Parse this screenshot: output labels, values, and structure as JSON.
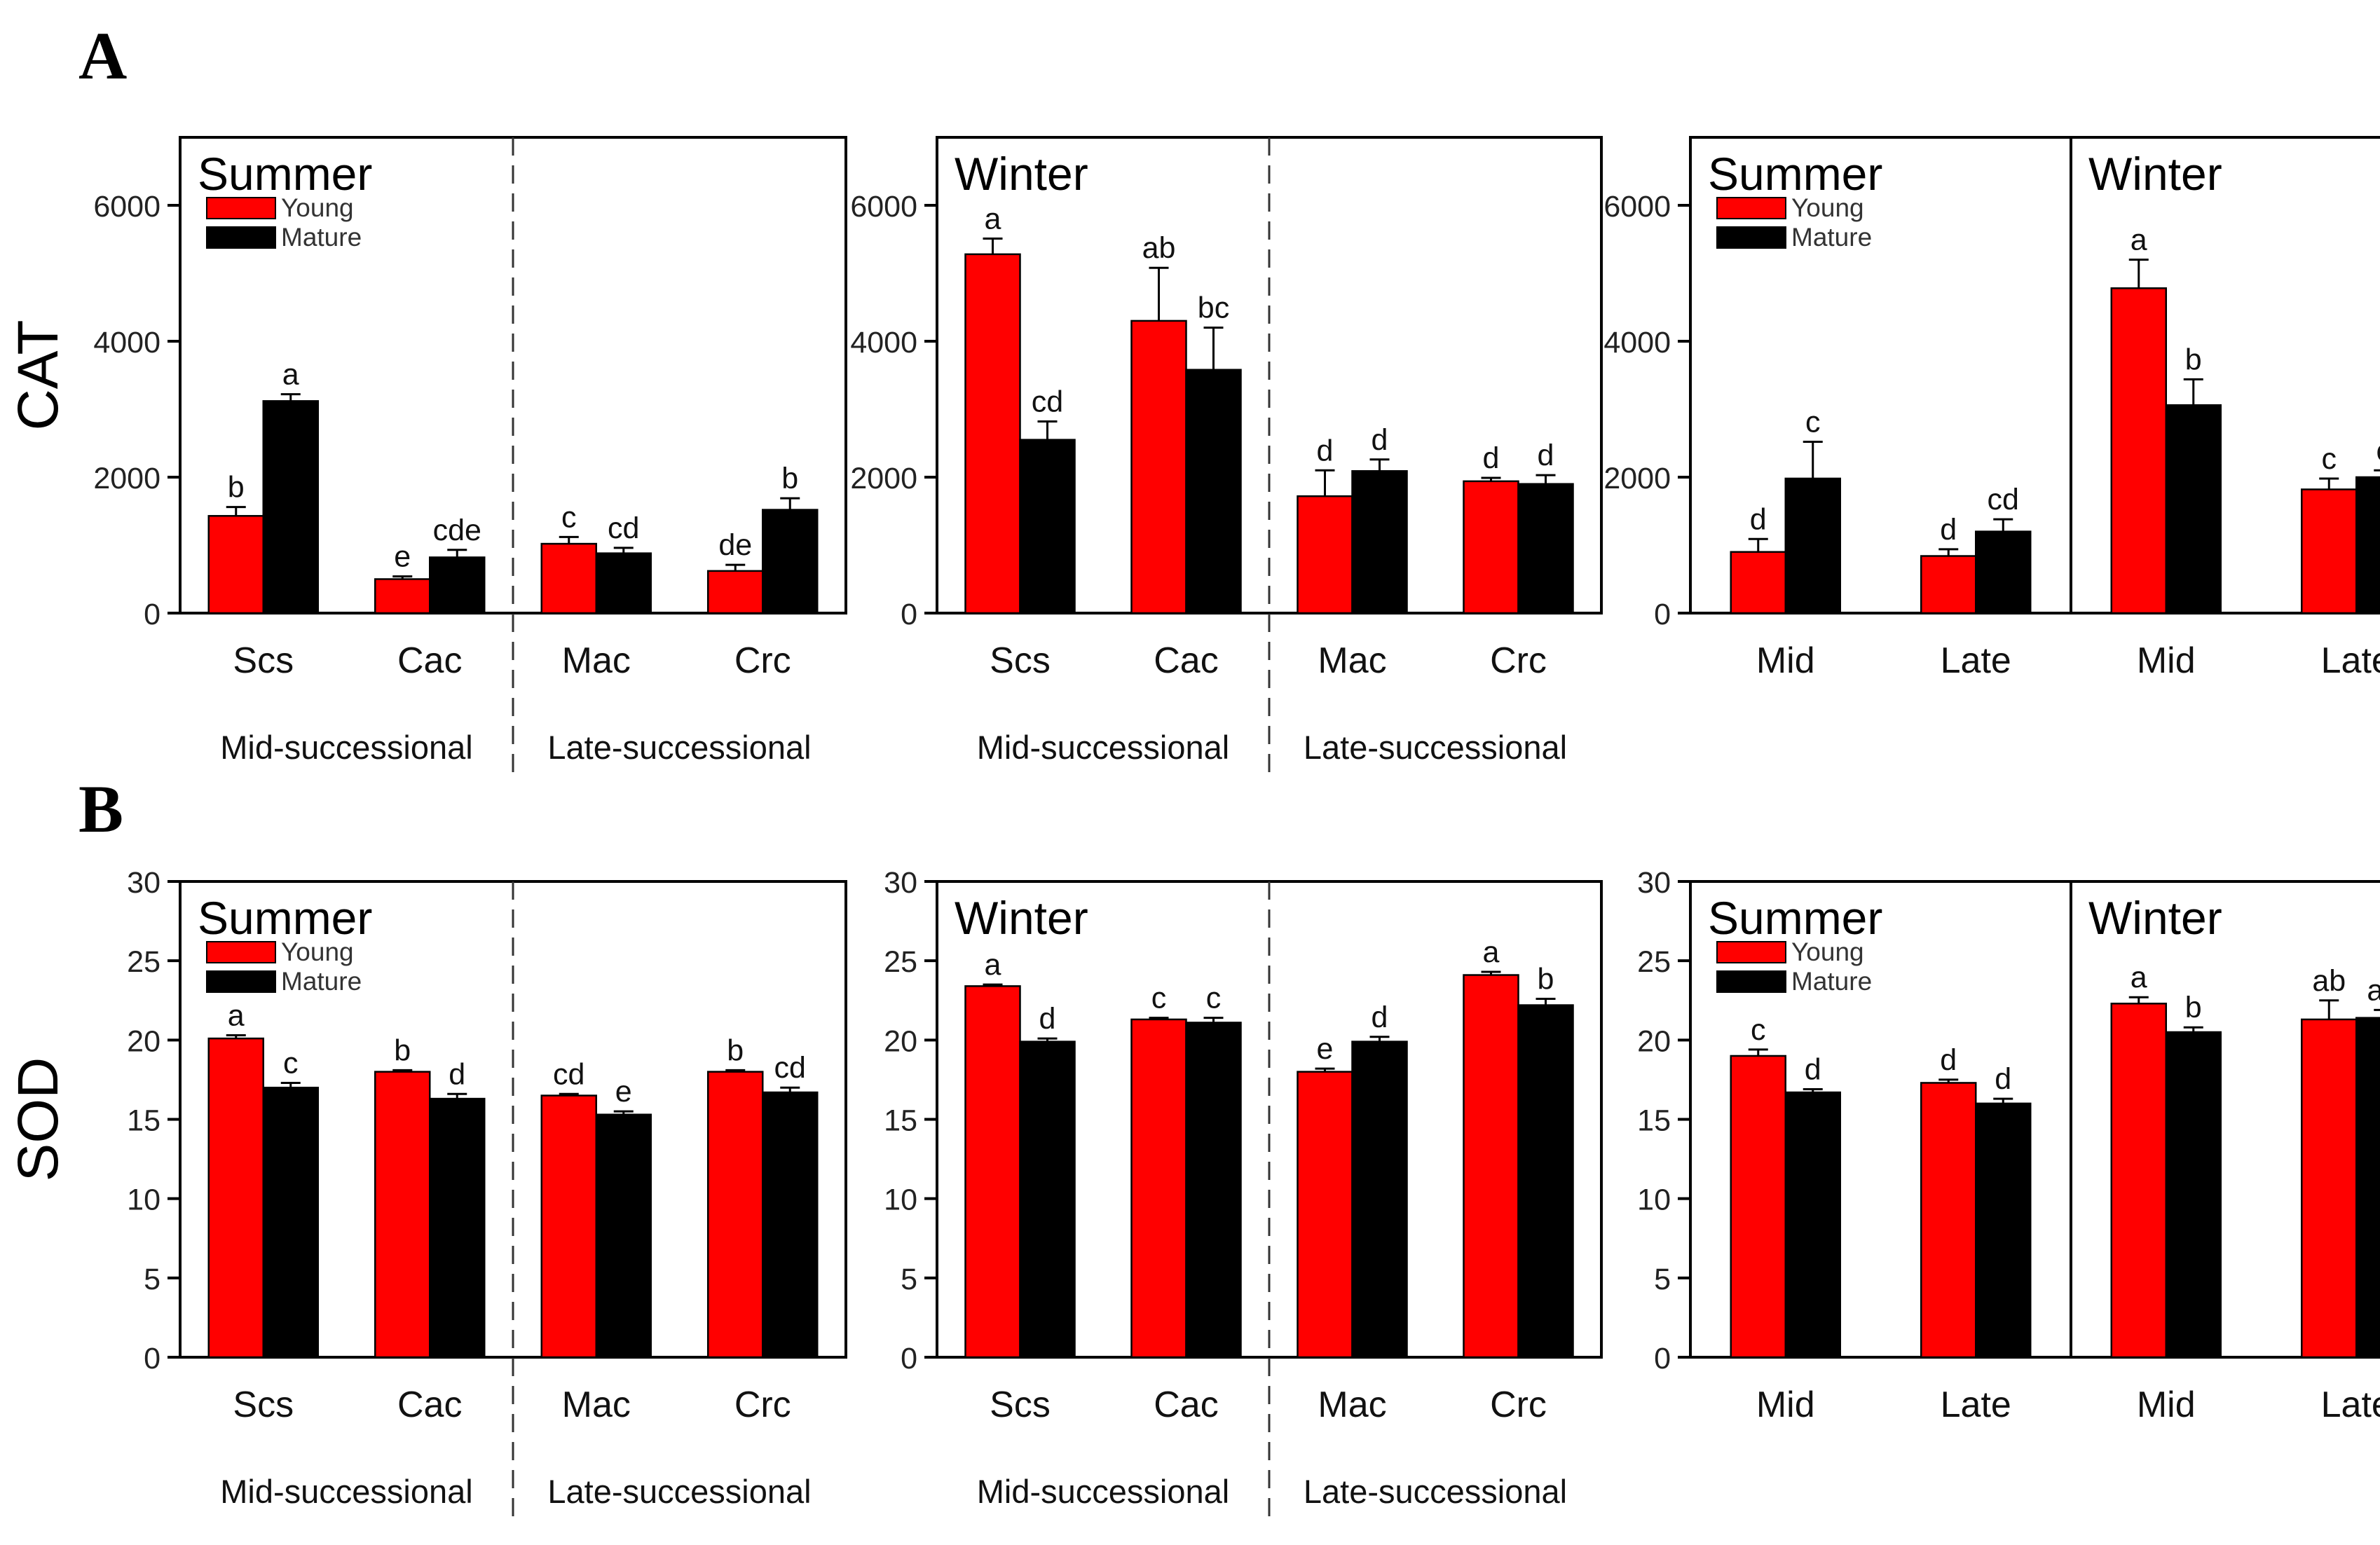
{
  "colors": {
    "young": "#ff0000",
    "mature": "#000000",
    "axis": "#000000"
  },
  "chart_data": [
    {
      "id": "A1",
      "type": "bar",
      "panel_label": "A",
      "ylabel": "CAT",
      "ylim": [
        0,
        7000
      ],
      "yticks": [
        "0",
        "2000",
        "4000",
        "6000"
      ],
      "season_labels": [
        "Summer"
      ],
      "legend": [
        "Young",
        "Mature"
      ],
      "categories": [
        "Scs",
        "Cac",
        "Mac",
        "Crc"
      ],
      "groups": [
        "Mid-successional",
        "Late-successional"
      ],
      "series": [
        {
          "name": "Young",
          "values": [
            1430,
            500,
            1020,
            620
          ],
          "errors": [
            130,
            40,
            100,
            90
          ],
          "letters": [
            "b",
            "e",
            "c",
            "de"
          ]
        },
        {
          "name": "Mature",
          "values": [
            3120,
            820,
            880,
            1520
          ],
          "errors": [
            100,
            110,
            80,
            170
          ],
          "letters": [
            "a",
            "cde",
            "cd",
            "b"
          ]
        }
      ]
    },
    {
      "id": "A2",
      "type": "bar",
      "ylim": [
        0,
        7000
      ],
      "yticks": [
        "0",
        "2000",
        "4000",
        "6000"
      ],
      "season_labels": [
        "Winter"
      ],
      "categories": [
        "Scs",
        "Cac",
        "Mac",
        "Crc"
      ],
      "groups": [
        "Mid-successional",
        "Late-successional"
      ],
      "series": [
        {
          "name": "Young",
          "values": [
            5280,
            4300,
            1720,
            1940
          ],
          "errors": [
            230,
            780,
            380,
            50
          ],
          "letters": [
            "a",
            "ab",
            "d",
            "d"
          ]
        },
        {
          "name": "Mature",
          "values": [
            2550,
            3580,
            2090,
            1900
          ],
          "errors": [
            270,
            620,
            170,
            130
          ],
          "letters": [
            "cd",
            "bc",
            "d",
            "d"
          ]
        }
      ]
    },
    {
      "id": "A3",
      "type": "bar",
      "ylim": [
        0,
        7000
      ],
      "yticks": [
        "0",
        "2000",
        "4000",
        "6000"
      ],
      "season_labels": [
        "Summer",
        "Winter"
      ],
      "legend": [
        "Young",
        "Mature"
      ],
      "categories": [
        "Mid",
        "Late",
        "Mid",
        "Late"
      ],
      "series": [
        {
          "name": "Young",
          "values": [
            900,
            840,
            4780,
            1820
          ],
          "errors": [
            190,
            100,
            420,
            160
          ],
          "letters": [
            "d",
            "d",
            "a",
            "c"
          ]
        },
        {
          "name": "Mature",
          "values": [
            1980,
            1200,
            3060,
            2000
          ],
          "errors": [
            540,
            180,
            380,
            100
          ],
          "letters": [
            "c",
            "cd",
            "b",
            "c"
          ]
        }
      ]
    },
    {
      "id": "B1",
      "type": "bar",
      "panel_label": "B",
      "ylabel": "SOD",
      "ylim": [
        0,
        30
      ],
      "yticks": [
        "0",
        "5",
        "10",
        "15",
        "20",
        "25",
        "30"
      ],
      "season_labels": [
        "Summer"
      ],
      "legend": [
        "Young",
        "Mature"
      ],
      "categories": [
        "Scs",
        "Cac",
        "Mac",
        "Crc"
      ],
      "groups": [
        "Mid-successional",
        "Late-successional"
      ],
      "series": [
        {
          "name": "Young",
          "values": [
            20.1,
            18.0,
            16.5,
            18.0
          ],
          "errors": [
            0.2,
            0.1,
            0.1,
            0.1
          ],
          "letters": [
            "a",
            "b",
            "cd",
            "b"
          ]
        },
        {
          "name": "Mature",
          "values": [
            17.0,
            16.3,
            15.3,
            16.7
          ],
          "errors": [
            0.3,
            0.3,
            0.2,
            0.3
          ],
          "letters": [
            "c",
            "d",
            "e",
            "cd"
          ]
        }
      ]
    },
    {
      "id": "B2",
      "type": "bar",
      "ylim": [
        0,
        30
      ],
      "yticks": [
        "0",
        "5",
        "10",
        "15",
        "20",
        "25",
        "30"
      ],
      "season_labels": [
        "Winter"
      ],
      "categories": [
        "Scs",
        "Cac",
        "Mac",
        "Crc"
      ],
      "groups": [
        "Mid-successional",
        "Late-successional"
      ],
      "series": [
        {
          "name": "Young",
          "values": [
            23.4,
            21.3,
            18.0,
            24.1
          ],
          "errors": [
            0.1,
            0.1,
            0.2,
            0.2
          ],
          "letters": [
            "a",
            "c",
            "e",
            "a"
          ]
        },
        {
          "name": "Mature",
          "values": [
            19.9,
            21.1,
            19.9,
            22.2
          ],
          "errors": [
            0.2,
            0.3,
            0.3,
            0.4
          ],
          "letters": [
            "d",
            "c",
            "d",
            "b"
          ]
        }
      ]
    },
    {
      "id": "B3",
      "type": "bar",
      "ylim": [
        0,
        30
      ],
      "yticks": [
        "0",
        "5",
        "10",
        "15",
        "20",
        "25",
        "30"
      ],
      "season_labels": [
        "Summer",
        "Winter"
      ],
      "legend": [
        "Young",
        "Mature"
      ],
      "categories": [
        "Mid",
        "Late",
        "Mid",
        "Late"
      ],
      "series": [
        {
          "name": "Young",
          "values": [
            19.0,
            17.3,
            22.3,
            21.3
          ],
          "errors": [
            0.4,
            0.2,
            0.4,
            1.2
          ],
          "letters": [
            "c",
            "d",
            "a",
            "ab"
          ]
        },
        {
          "name": "Mature",
          "values": [
            16.7,
            16.0,
            20.5,
            21.4
          ],
          "errors": [
            0.2,
            0.3,
            0.3,
            0.5
          ],
          "letters": [
            "d",
            "d",
            "b",
            "ab"
          ]
        }
      ]
    }
  ]
}
